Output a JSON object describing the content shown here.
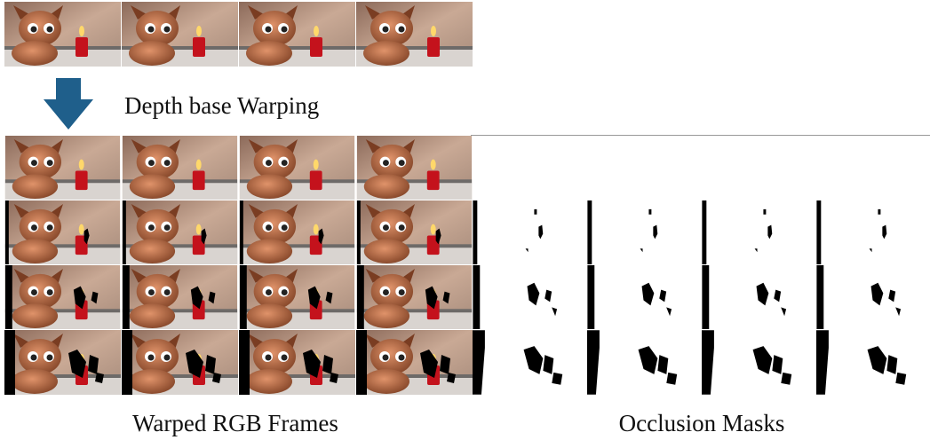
{
  "figure": {
    "step_label": "Depth base Warping",
    "left_caption": "Warped RGB Frames",
    "right_caption": "Occlusion Masks"
  }
}
